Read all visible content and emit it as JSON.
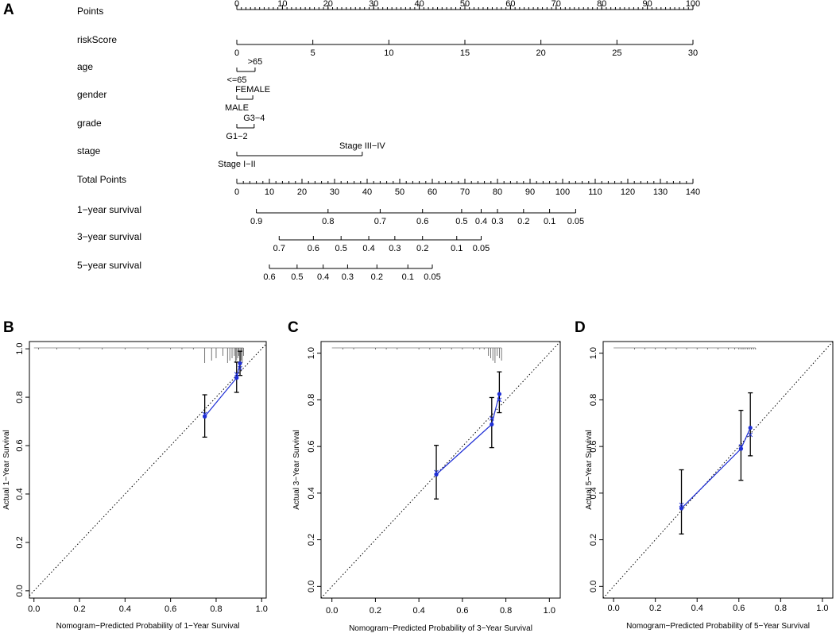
{
  "chart_data": [
    {
      "type": "nomogram",
      "panel": "A",
      "rows": [
        {
          "label": "Points",
          "ticks": [
            0,
            10,
            20,
            30,
            40,
            50,
            60,
            70,
            80,
            90,
            100
          ],
          "range": [
            0,
            100
          ],
          "minor": 1
        },
        {
          "label": "riskScore",
          "ticks": [
            0,
            5,
            10,
            15,
            20,
            25,
            30
          ],
          "range": [
            0,
            30
          ]
        },
        {
          "label": "age",
          "categories": [
            {
              "label": "<=65",
              "points": 0
            },
            {
              "label": ">65",
              "points": 4
            }
          ]
        },
        {
          "label": "gender",
          "categories": [
            {
              "label": "MALE",
              "points": 0
            },
            {
              "label": "FEMALE",
              "points": 3.5
            }
          ]
        },
        {
          "label": "grade",
          "categories": [
            {
              "label": "G1−2",
              "points": 0
            },
            {
              "label": "G3−4",
              "points": 3.8
            }
          ]
        },
        {
          "label": "stage",
          "categories": [
            {
              "label": "Stage I−II",
              "points": 0
            },
            {
              "label": "Stage III−IV",
              "points": 27.5
            }
          ]
        },
        {
          "label": "Total Points",
          "ticks": [
            0,
            10,
            20,
            30,
            40,
            50,
            60,
            70,
            80,
            90,
            100,
            110,
            120,
            130,
            140
          ],
          "range": [
            0,
            140
          ],
          "minor": 2
        },
        {
          "label": "1−year survival",
          "prob_ticks": [
            {
              "label": "0.9",
              "points": 6
            },
            {
              "label": "0.8",
              "points": 28
            },
            {
              "label": "0.7",
              "points": 44
            },
            {
              "label": "0.6",
              "points": 57
            },
            {
              "label": "0.5",
              "points": 69
            },
            {
              "label": "0.4",
              "points": 75
            },
            {
              "label": "0.3",
              "points": 80
            },
            {
              "label": "0.2",
              "points": 88
            },
            {
              "label": "0.1",
              "points": 96
            },
            {
              "label": "0.05",
              "points": 104
            }
          ]
        },
        {
          "label": "3−year survival",
          "prob_ticks": [
            {
              "label": "0.7",
              "points": 13
            },
            {
              "label": "0.6",
              "points": 23.5
            },
            {
              "label": "0.5",
              "points": 32
            },
            {
              "label": "0.4",
              "points": 40.5
            },
            {
              "label": "0.3",
              "points": 48.5
            },
            {
              "label": "0.2",
              "points": 57
            },
            {
              "label": "0.1",
              "points": 67.5
            },
            {
              "label": "0.05",
              "points": 75
            }
          ]
        },
        {
          "label": "5−year survival",
          "prob_ticks": [
            {
              "label": "0.6",
              "points": 10
            },
            {
              "label": "0.5",
              "points": 18.5
            },
            {
              "label": "0.4",
              "points": 26.5
            },
            {
              "label": "0.3",
              "points": 34
            },
            {
              "label": "0.2",
              "points": 43
            },
            {
              "label": "0.1",
              "points": 52.5
            },
            {
              "label": "0.05",
              "points": 60
            }
          ]
        }
      ]
    },
    {
      "type": "calibration",
      "panel": "B",
      "xlabel": "Nomogram−Predicted Probability of 1−Year Survival",
      "ylabel": "Actual 1−Year Survival",
      "xlim": [
        -0.02,
        1.02
      ],
      "ylim": [
        -0.03,
        1.03
      ],
      "xticks": [
        "0.0",
        "0.2",
        "0.4",
        "0.6",
        "0.8",
        "1.0"
      ],
      "yticks": [
        "0.0",
        "0.2",
        "0.4",
        "0.6",
        "0.8",
        "1.0"
      ],
      "observed": [
        {
          "x": 0.75,
          "y": 0.72,
          "lo": 0.635,
          "hi": 0.81
        },
        {
          "x": 0.89,
          "y": 0.88,
          "lo": 0.82,
          "hi": 0.945
        },
        {
          "x": 0.905,
          "y": 0.94,
          "lo": 0.89,
          "hi": 0.99
        }
      ],
      "corrected": [
        {
          "x": 0.75,
          "y": 0.73
        },
        {
          "x": 0.89,
          "y": 0.895
        },
        {
          "x": 0.905,
          "y": 0.92
        }
      ],
      "rug": [
        0.9,
        0.905,
        0.91,
        0.915,
        0.92,
        0.895,
        0.89,
        0.885,
        0.88,
        0.87,
        0.86,
        0.85,
        0.83,
        0.8,
        0.78,
        0.75,
        0.7,
        0.65,
        0.6,
        0.5,
        0.4,
        0.3,
        0.2,
        0.1,
        0.02
      ]
    },
    {
      "type": "calibration",
      "panel": "C",
      "xlabel": "Nomogram−Predicted Probability of 3−Year Survival",
      "ylabel": "Actual 3−Year Survival",
      "xlim": [
        -0.05,
        1.05
      ],
      "ylim": [
        -0.05,
        1.05
      ],
      "xticks": [
        "0.0",
        "0.2",
        "0.4",
        "0.6",
        "0.8",
        "1.0"
      ],
      "yticks": [
        "0.0",
        "0.2",
        "0.4",
        "0.6",
        "0.8",
        "1.0"
      ],
      "observed": [
        {
          "x": 0.48,
          "y": 0.48,
          "lo": 0.375,
          "hi": 0.605
        },
        {
          "x": 0.735,
          "y": 0.695,
          "lo": 0.595,
          "hi": 0.81
        },
        {
          "x": 0.77,
          "y": 0.825,
          "lo": 0.745,
          "hi": 0.92
        }
      ],
      "corrected": [
        {
          "x": 0.48,
          "y": 0.49
        },
        {
          "x": 0.735,
          "y": 0.72
        },
        {
          "x": 0.77,
          "y": 0.8
        }
      ],
      "rug": [
        0.72,
        0.73,
        0.74,
        0.75,
        0.76,
        0.77,
        0.78,
        0.7,
        0.68,
        0.65,
        0.6,
        0.55,
        0.5,
        0.45,
        0.4,
        0.3,
        0.25,
        0.2,
        0.1,
        0.05
      ]
    },
    {
      "type": "calibration",
      "panel": "D",
      "xlabel": "Nomogram−Predicted Probability of 5−Year Survival",
      "ylabel": "Actual 5−Year Survival",
      "xlim": [
        -0.05,
        1.05
      ],
      "ylim": [
        -0.05,
        1.05
      ],
      "xticks": [
        "0.0",
        "0.2",
        "0.4",
        "0.6",
        "0.8",
        "1.0"
      ],
      "yticks": [
        "0.0",
        "0.2",
        "0.4",
        "0.6",
        "0.8",
        "1.0"
      ],
      "observed": [
        {
          "x": 0.325,
          "y": 0.335,
          "lo": 0.225,
          "hi": 0.5
        },
        {
          "x": 0.61,
          "y": 0.59,
          "lo": 0.455,
          "hi": 0.755
        },
        {
          "x": 0.655,
          "y": 0.68,
          "lo": 0.56,
          "hi": 0.83
        }
      ],
      "corrected": [
        {
          "x": 0.325,
          "y": 0.35
        },
        {
          "x": 0.61,
          "y": 0.6
        },
        {
          "x": 0.655,
          "y": 0.65
        }
      ],
      "rug": [
        0.6,
        0.61,
        0.62,
        0.63,
        0.64,
        0.65,
        0.66,
        0.67,
        0.68,
        0.58,
        0.55,
        0.5,
        0.45,
        0.4,
        0.35,
        0.3,
        0.25,
        0.2,
        0.15,
        0.1
      ]
    }
  ]
}
